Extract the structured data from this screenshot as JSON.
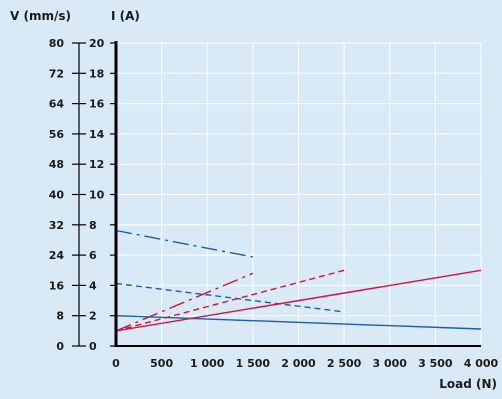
{
  "chart_data": {
    "type": "line",
    "y_left_label": "V (mm/s)",
    "y_right_label": "I (A)",
    "xlabel": "Load (N)",
    "xlim": [
      0,
      4000
    ],
    "y_left_lim": [
      0,
      80
    ],
    "y_right_lim": [
      0,
      20
    ],
    "x_ticks": [
      0,
      500,
      1000,
      1500,
      2000,
      2500,
      3000,
      3500,
      4000
    ],
    "x_tick_labels": [
      "0",
      "500",
      "1 000",
      "1 500",
      "2 000",
      "2 500",
      "3 000",
      "3 500",
      "4 000"
    ],
    "y_left_ticks": [
      0,
      8,
      16,
      24,
      32,
      40,
      48,
      56,
      64,
      72,
      80
    ],
    "y_right_ticks": [
      0,
      2,
      4,
      6,
      8,
      10,
      12,
      14,
      16,
      18,
      20
    ],
    "grid": true,
    "colors": {
      "speed": "#1a5fa8",
      "current": "#d4123a",
      "grid": "#ffffff",
      "axis": "#000000"
    },
    "series": [
      {
        "quantity": "speed",
        "axis": "left",
        "style": "dashdot",
        "x": [
          0,
          1500
        ],
        "y": [
          30.5,
          23.5
        ]
      },
      {
        "quantity": "current",
        "axis": "right",
        "style": "dashdot",
        "x": [
          0,
          1500
        ],
        "y": [
          1.0,
          4.8
        ]
      },
      {
        "quantity": "speed",
        "axis": "left",
        "style": "dashed",
        "x": [
          0,
          2500
        ],
        "y": [
          16.5,
          9.0
        ]
      },
      {
        "quantity": "current",
        "axis": "right",
        "style": "dashed",
        "x": [
          0,
          2500
        ],
        "y": [
          1.0,
          5.0
        ]
      },
      {
        "quantity": "speed",
        "axis": "left",
        "style": "solid",
        "x": [
          0,
          4000
        ],
        "y": [
          8.0,
          4.5
        ]
      },
      {
        "quantity": "current",
        "axis": "right",
        "style": "solid",
        "x": [
          0,
          4000
        ],
        "y": [
          1.0,
          5.0
        ]
      }
    ]
  }
}
